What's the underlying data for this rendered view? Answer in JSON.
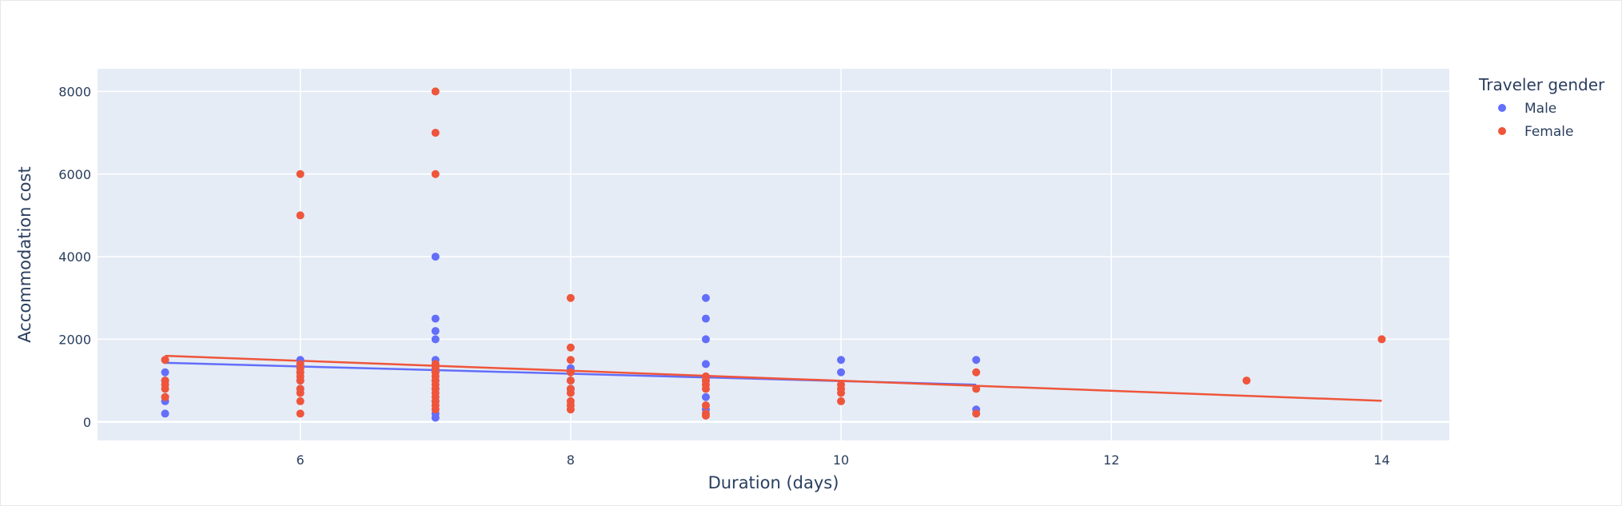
{
  "chart_data": {
    "type": "scatter",
    "title": "",
    "xlabel": "Duration (days)",
    "ylabel": "Accommodation cost",
    "xlim": [
      4.5,
      14.5
    ],
    "ylim": [
      -450,
      8550
    ],
    "x_ticks": [
      6,
      8,
      10,
      12,
      14
    ],
    "y_ticks": [
      0,
      2000,
      4000,
      6000,
      8000
    ],
    "grid": true,
    "legend": {
      "title": "Traveler gender",
      "placement": "top-right"
    },
    "series": [
      {
        "name": "Male",
        "color": "#636efa",
        "points": [
          [
            5,
            1500
          ],
          [
            5,
            1200
          ],
          [
            5,
            1000
          ],
          [
            5,
            600
          ],
          [
            5,
            500
          ],
          [
            5,
            200
          ],
          [
            6,
            1500
          ],
          [
            6,
            1400
          ],
          [
            6,
            1300
          ],
          [
            6,
            1200
          ],
          [
            6,
            1000
          ],
          [
            6,
            800
          ],
          [
            7,
            4000
          ],
          [
            7,
            2500
          ],
          [
            7,
            2200
          ],
          [
            7,
            2000
          ],
          [
            7,
            1500
          ],
          [
            7,
            1200
          ],
          [
            7,
            1000
          ],
          [
            7,
            800
          ],
          [
            7,
            500
          ],
          [
            7,
            200
          ],
          [
            7,
            100
          ],
          [
            8,
            1300
          ],
          [
            8,
            1200
          ],
          [
            8,
            1000
          ],
          [
            8,
            800
          ],
          [
            9,
            3000
          ],
          [
            9,
            2500
          ],
          [
            9,
            2000
          ],
          [
            9,
            1400
          ],
          [
            9,
            1000
          ],
          [
            9,
            600
          ],
          [
            9,
            300
          ],
          [
            10,
            1500
          ],
          [
            10,
            1200
          ],
          [
            11,
            1500
          ],
          [
            11,
            300
          ]
        ],
        "trendline": [
          [
            5,
            1430
          ],
          [
            11,
            900
          ]
        ]
      },
      {
        "name": "Female",
        "color": "#ef553b",
        "points": [
          [
            5,
            1500
          ],
          [
            5,
            1000
          ],
          [
            5,
            900
          ],
          [
            5,
            800
          ],
          [
            5,
            600
          ],
          [
            6,
            6000
          ],
          [
            6,
            5000
          ],
          [
            6,
            1400
          ],
          [
            6,
            1300
          ],
          [
            6,
            1200
          ],
          [
            6,
            1100
          ],
          [
            6,
            1000
          ],
          [
            6,
            800
          ],
          [
            6,
            700
          ],
          [
            6,
            500
          ],
          [
            6,
            200
          ],
          [
            7,
            8000
          ],
          [
            7,
            7000
          ],
          [
            7,
            6000
          ],
          [
            7,
            1400
          ],
          [
            7,
            1300
          ],
          [
            7,
            1200
          ],
          [
            7,
            1100
          ],
          [
            7,
            1000
          ],
          [
            7,
            900
          ],
          [
            7,
            800
          ],
          [
            7,
            700
          ],
          [
            7,
            600
          ],
          [
            7,
            500
          ],
          [
            7,
            400
          ],
          [
            7,
            300
          ],
          [
            8,
            3000
          ],
          [
            8,
            1800
          ],
          [
            8,
            1500
          ],
          [
            8,
            1200
          ],
          [
            8,
            1000
          ],
          [
            8,
            800
          ],
          [
            8,
            700
          ],
          [
            8,
            500
          ],
          [
            8,
            400
          ],
          [
            8,
            300
          ],
          [
            9,
            1100
          ],
          [
            9,
            1000
          ],
          [
            9,
            900
          ],
          [
            9,
            800
          ],
          [
            9,
            400
          ],
          [
            9,
            200
          ],
          [
            9,
            150
          ],
          [
            10,
            900
          ],
          [
            10,
            800
          ],
          [
            10,
            700
          ],
          [
            10,
            500
          ],
          [
            11,
            1200
          ],
          [
            11,
            800
          ],
          [
            11,
            200
          ],
          [
            13,
            1000
          ],
          [
            14,
            2000
          ]
        ],
        "trendline": [
          [
            5,
            1600
          ],
          [
            14,
            510
          ]
        ]
      }
    ]
  }
}
